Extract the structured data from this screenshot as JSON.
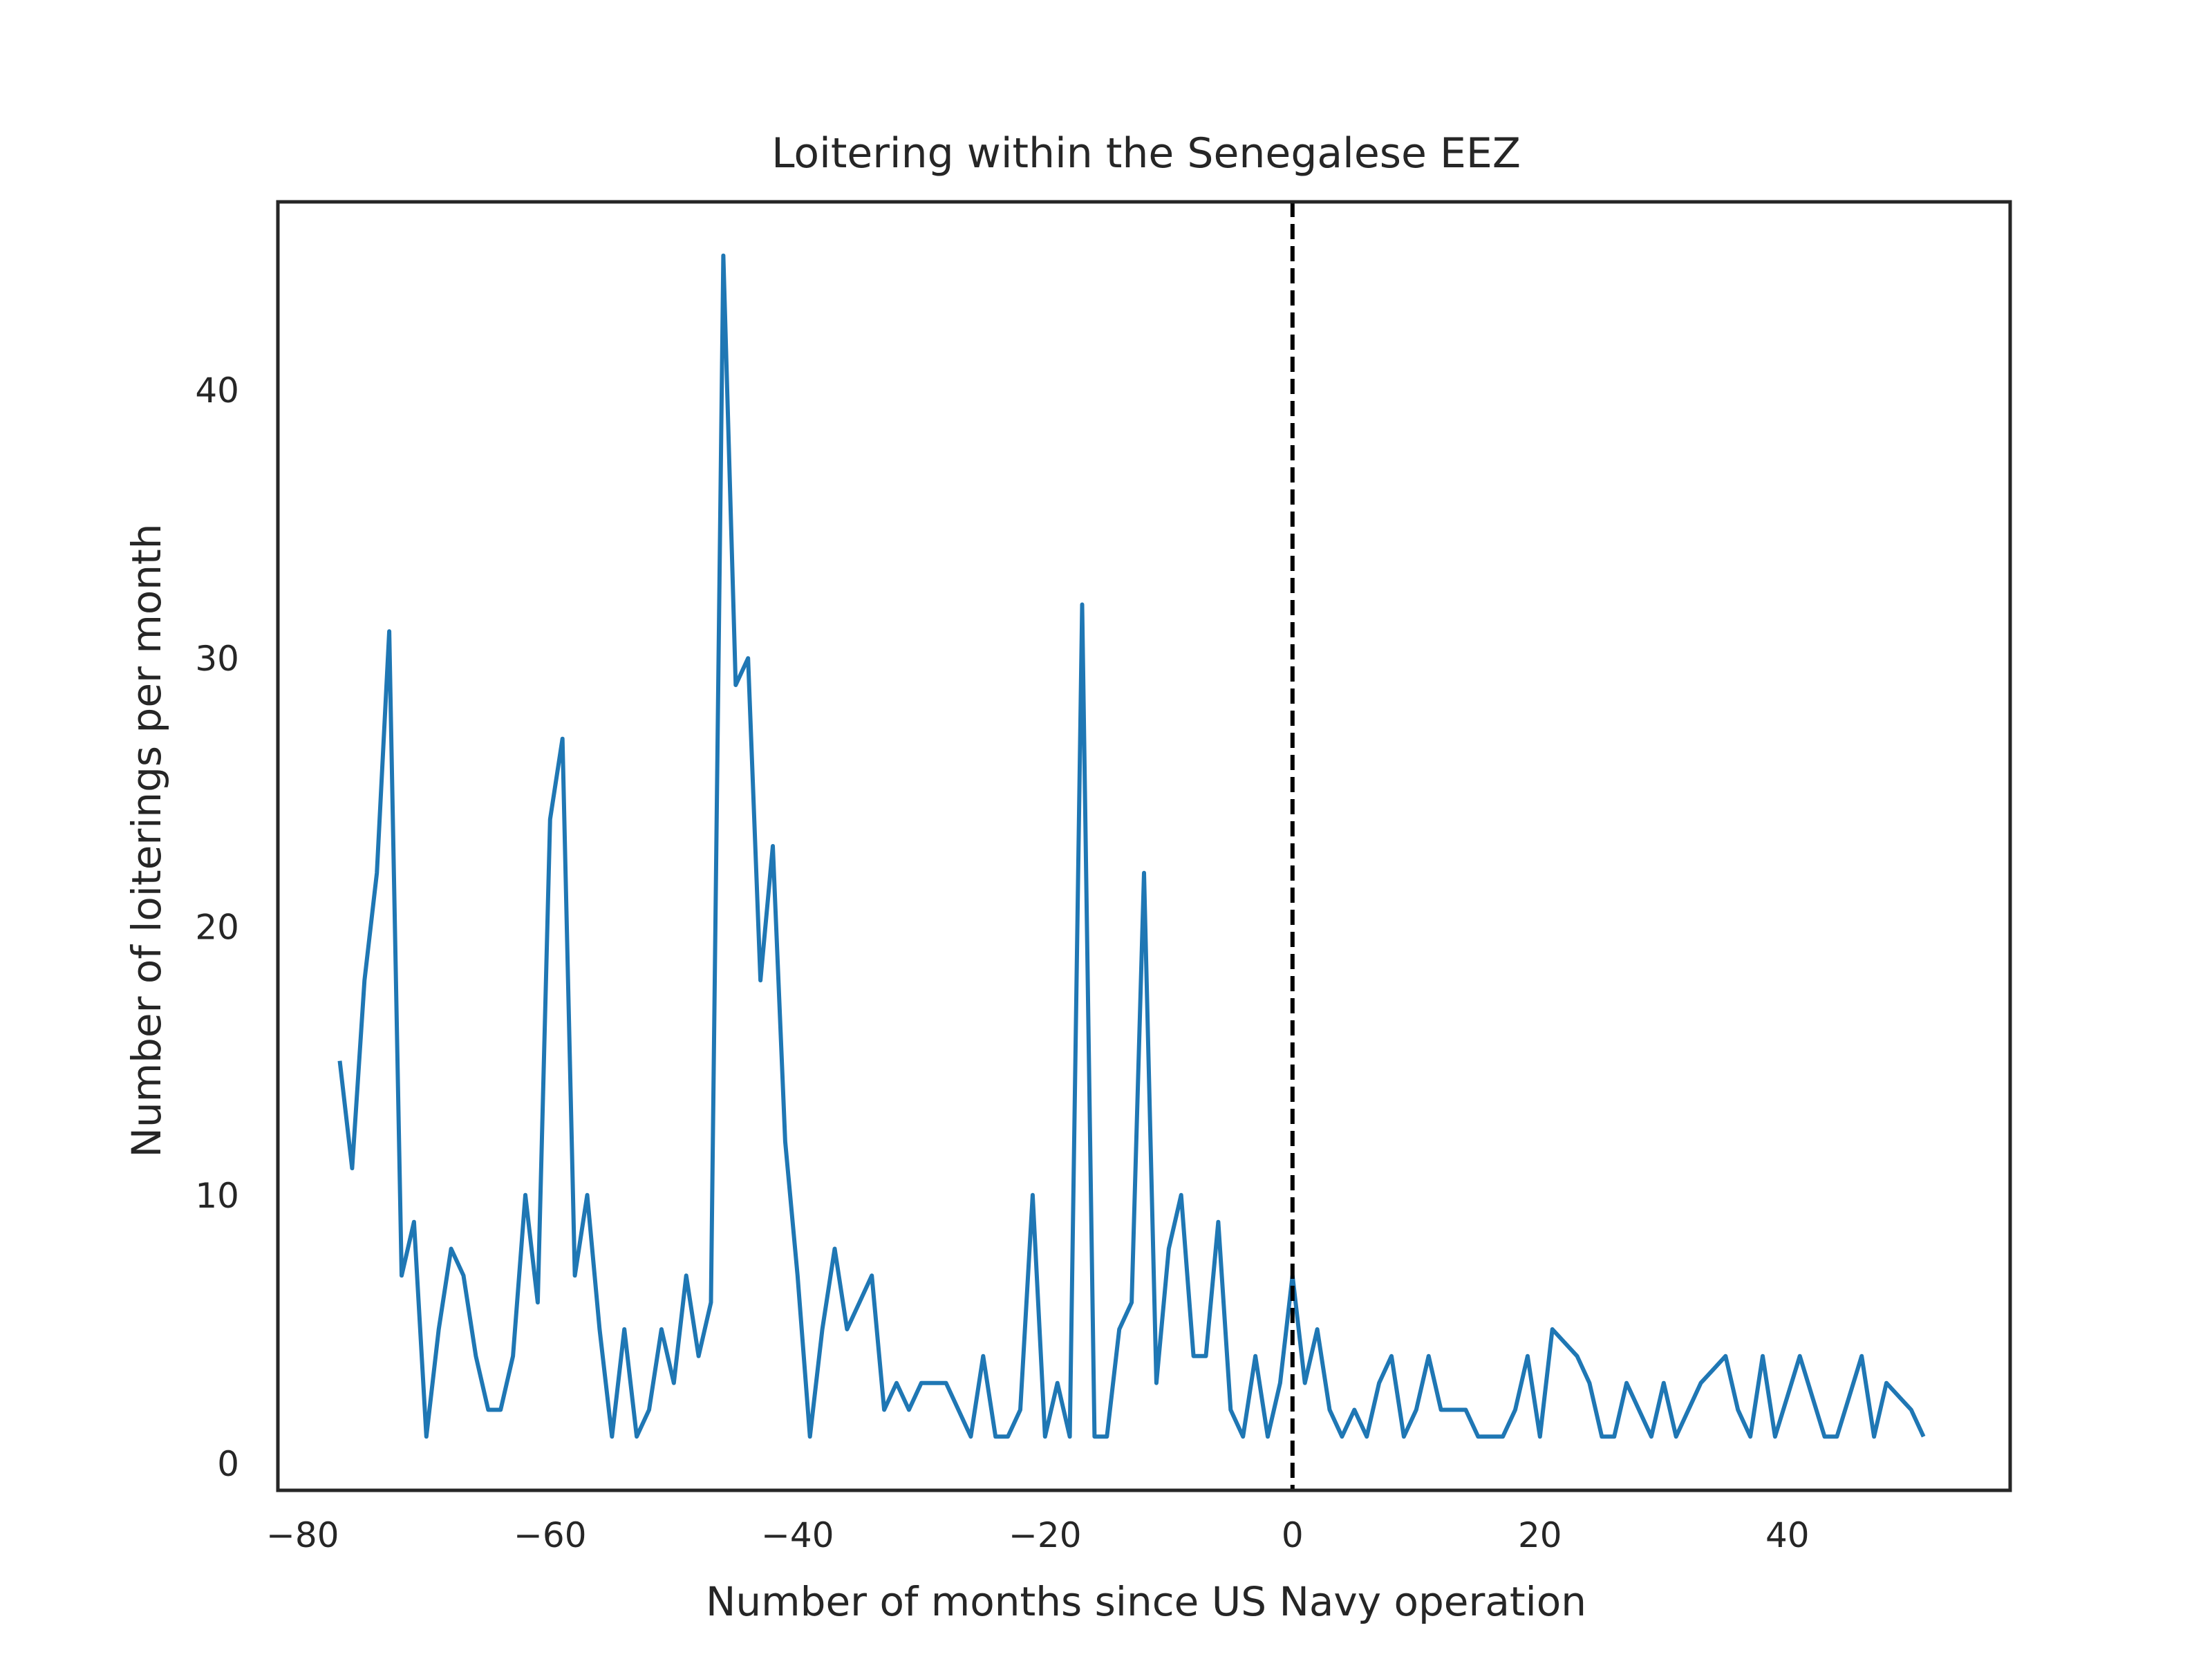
{
  "chart_data": {
    "type": "line",
    "title": "Loitering within the Senegalese EEZ",
    "xlabel": "Number of months since US Navy operation",
    "ylabel": "Number of loiterings per month",
    "xlim": [
      -82,
      58
    ],
    "ylim": [
      -1,
      47
    ],
    "xticks": [
      -80,
      -60,
      -40,
      -20,
      0,
      20,
      40
    ],
    "yticks": [
      0,
      10,
      20,
      30,
      40
    ],
    "xtick_labels": [
      "−80",
      "−60",
      "−40",
      "−20",
      "0",
      "20",
      "40"
    ],
    "ytick_labels": [
      "0",
      "10",
      "20",
      "30",
      "40"
    ],
    "grid": false,
    "series_color": "#1f77b4",
    "reference_line": {
      "x": 0,
      "style": "dashed",
      "color": "#000000"
    },
    "series": [
      {
        "x": [
          -77,
          -76,
          -75,
          -74,
          -73,
          -72,
          -71,
          -70,
          -69,
          -68,
          -67,
          -66,
          -65,
          -64,
          -63,
          -62,
          -61,
          -60,
          -59,
          -58,
          -57,
          -56,
          -55,
          -54,
          -53,
          -52,
          -51,
          -50,
          -49,
          -48,
          -47,
          -46,
          -45,
          -44,
          -43,
          -42,
          -41,
          -40,
          -39,
          -38,
          -37,
          -36,
          -35,
          -34,
          -33,
          -32,
          -31,
          -30,
          -29,
          -28,
          -27,
          -26,
          -25,
          -24,
          -23,
          -22,
          -21,
          -20,
          -19,
          -18,
          -17,
          -16,
          -15,
          -14,
          -13,
          -12,
          -11,
          -10,
          -9,
          -8,
          -7,
          -6,
          -5,
          -4,
          -3,
          -2,
          -1,
          0,
          1,
          2,
          3,
          4,
          5,
          6,
          7,
          8,
          9,
          10,
          11,
          12,
          13,
          14,
          15,
          16,
          17,
          18,
          19,
          20,
          21,
          22,
          23,
          24,
          25,
          26,
          27,
          28,
          29,
          30,
          31,
          32,
          33,
          34,
          35,
          36,
          37,
          38,
          39,
          40,
          41,
          42,
          43,
          44,
          45,
          46,
          47,
          48,
          49,
          50,
          51
        ],
        "values": [
          15,
          11,
          18,
          22,
          31,
          7,
          9,
          1,
          5,
          8,
          7,
          4,
          2,
          2,
          4,
          10,
          6,
          24,
          27,
          7,
          10,
          5,
          1,
          5,
          1,
          2,
          5,
          3,
          7,
          4,
          6,
          45,
          29,
          30,
          18,
          23,
          12,
          7,
          1,
          5,
          8,
          5,
          6,
          7,
          2,
          3,
          2,
          3,
          3,
          3,
          2,
          1,
          4,
          1,
          1,
          2,
          10,
          1,
          3,
          1,
          32,
          1,
          1,
          5,
          6,
          22,
          3,
          8,
          10,
          4,
          4,
          9,
          2,
          1,
          4,
          1,
          3,
          7,
          3,
          5,
          2,
          1,
          2,
          1,
          3,
          4,
          1,
          2,
          4,
          2,
          2,
          2,
          1,
          1,
          1,
          2,
          4,
          1,
          5,
          4.5,
          4,
          3,
          1,
          1,
          3,
          2,
          1,
          3,
          1,
          2,
          3,
          3.5,
          4,
          2,
          1,
          4,
          1,
          2.5,
          4,
          2.5,
          1,
          1,
          2.5,
          4,
          1,
          3,
          2.5,
          2,
          1
        ]
      }
    ]
  }
}
